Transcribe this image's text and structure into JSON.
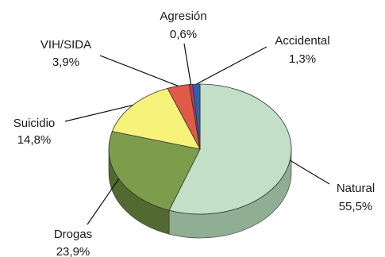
{
  "chart_data": {
    "type": "pie",
    "style": "3d",
    "slices": [
      {
        "label": "Natural",
        "display": "55,5%",
        "value": 55.5,
        "color": "#c4dfc8",
        "side": "#8fae93"
      },
      {
        "label": "Drogas",
        "display": "23,9%",
        "value": 23.9,
        "color": "#7d9d4c",
        "side": "#52692f"
      },
      {
        "label": "Suicidio",
        "display": "14,8%",
        "value": 14.8,
        "color": "#f6f27a",
        "side": "#b7b24a"
      },
      {
        "label": "VIH/SIDA",
        "display": "3,9%",
        "value": 3.9,
        "color": "#e05a48",
        "side": "#9a3a2e"
      },
      {
        "label": "Agresión",
        "display": "0,6%",
        "value": 0.6,
        "color": "#b73b57",
        "side": "#7d2438"
      },
      {
        "label": "Accidental",
        "display": "1,3%",
        "value": 1.3,
        "color": "#2f5fb0",
        "side": "#1c3c72"
      }
    ]
  }
}
